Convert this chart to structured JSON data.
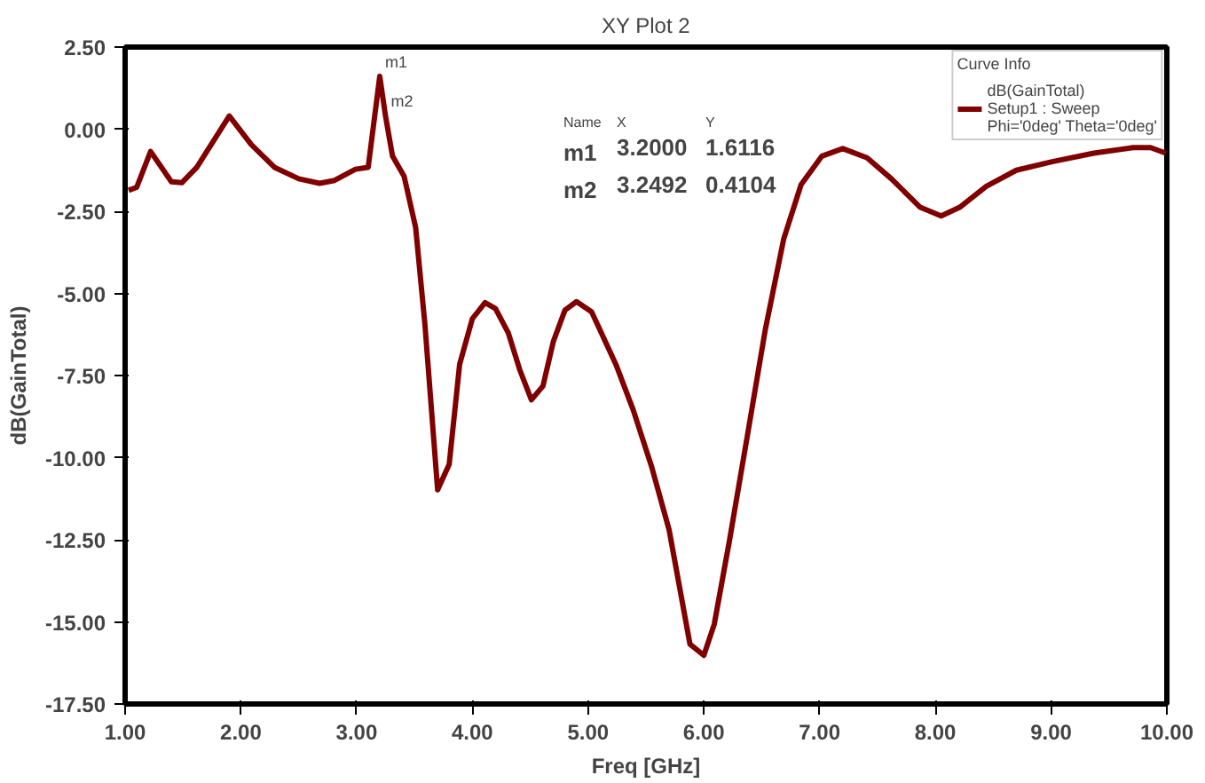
{
  "chart_data": {
    "type": "line",
    "title": "XY Plot 2",
    "xlabel": "Freq [GHz]",
    "ylabel": "dB(GainTotal)",
    "legend_title": "Curve Info",
    "series": [
      {
        "name": "dB(GainTotal)\nSetup1 : Sweep\nPhi='0deg' Theta='0deg'",
        "color": "#800000",
        "x": [
          1.03,
          1.1,
          1.22,
          1.4,
          1.49,
          1.62,
          1.9,
          2.09,
          2.29,
          2.5,
          2.68,
          2.81,
          2.99,
          3.1,
          3.2,
          3.2492,
          3.31,
          3.41,
          3.51,
          3.59,
          3.7,
          3.8,
          3.89,
          4.0,
          4.11,
          4.2,
          4.31,
          4.41,
          4.51,
          4.61,
          4.7,
          4.8,
          4.9,
          5.03,
          5.08,
          5.24,
          5.39,
          5.55,
          5.7,
          5.88,
          6.0,
          6.09,
          6.22,
          6.38,
          6.53,
          6.69,
          6.84,
          7.02,
          7.2,
          7.41,
          7.62,
          7.87,
          8.05,
          8.21,
          8.44,
          8.7,
          9.01,
          9.37,
          9.71,
          9.86,
          9.99
        ],
        "values": [
          -1.86,
          -1.77,
          -0.68,
          -1.6,
          -1.63,
          -1.16,
          0.4,
          -0.47,
          -1.16,
          -1.51,
          -1.65,
          -1.56,
          -1.22,
          -1.16,
          1.6116,
          0.4104,
          -0.82,
          -1.43,
          -2.99,
          -5.94,
          -10.98,
          -10.2,
          -7.16,
          -5.77,
          -5.28,
          -5.46,
          -6.2,
          -7.33,
          -8.24,
          -7.82,
          -6.46,
          -5.51,
          -5.25,
          -5.56,
          -5.94,
          -7.16,
          -8.55,
          -10.29,
          -12.2,
          -15.68,
          -16.02,
          -15.07,
          -12.55,
          -9.25,
          -6.12,
          -3.34,
          -1.69,
          -0.82,
          -0.59,
          -0.87,
          -1.51,
          -2.38,
          -2.64,
          -2.38,
          -1.74,
          -1.25,
          -0.99,
          -0.73,
          -0.56,
          -0.56,
          -0.73
        ]
      }
    ],
    "xlim": [
      1,
      10
    ],
    "ylim": [
      -17.5,
      2.5
    ],
    "xticks": [
      {
        "value": 1,
        "label": "1.00"
      },
      {
        "value": 2,
        "label": "2.00"
      },
      {
        "value": 3,
        "label": "3.00"
      },
      {
        "value": 4,
        "label": "4.00"
      },
      {
        "value": 5,
        "label": "5.00"
      },
      {
        "value": 6,
        "label": "6.00"
      },
      {
        "value": 7,
        "label": "7.00"
      },
      {
        "value": 8,
        "label": "8.00"
      },
      {
        "value": 9,
        "label": "9.00"
      },
      {
        "value": 10,
        "label": "10.00"
      }
    ],
    "yticks": [
      {
        "value": 2.5,
        "label": "2.50"
      },
      {
        "value": 0,
        "label": "0.00"
      },
      {
        "value": -2.5,
        "label": "-2.50"
      },
      {
        "value": -5,
        "label": "-5.00"
      },
      {
        "value": -7.5,
        "label": "-7.50"
      },
      {
        "value": -10,
        "label": "-10.00"
      },
      {
        "value": -12.5,
        "label": "-12.50"
      },
      {
        "value": -15,
        "label": "-15.00"
      },
      {
        "value": -17.5,
        "label": "-17.50"
      }
    ],
    "annotations": [
      {
        "text": "m1",
        "x": 3.2,
        "y": 1.6116
      },
      {
        "text": "m2",
        "x": 3.2492,
        "y": 0.4104
      },
      "Name",
      "X",
      "Y",
      "m1",
      "3.2000",
      "1.6116",
      "m2",
      "3.2492",
      "0.4104"
    ],
    "grid": false,
    "legend": "top right",
    "marker": "none",
    "line_style": "solid"
  }
}
